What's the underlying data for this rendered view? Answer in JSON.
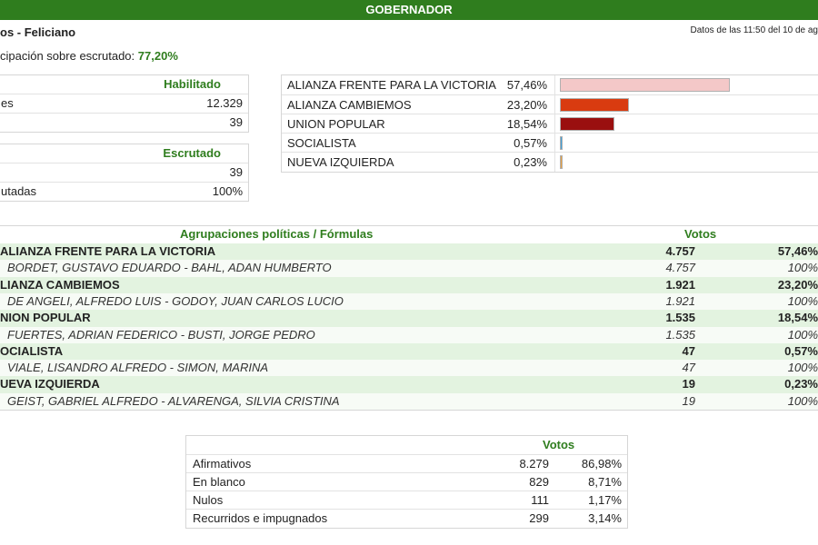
{
  "header": {
    "title": "GOBERNADOR"
  },
  "location": {
    "title": "os - Feliciano"
  },
  "date": {
    "text": "Datos de las 11:50 del 10 de ag"
  },
  "participation": {
    "label": "cipación sobre escrutado:",
    "value": "77,20%"
  },
  "habilitado": {
    "header": "Habilitado",
    "rows": [
      {
        "label": "es",
        "value": "12.329"
      },
      {
        "label": "",
        "value": "39"
      }
    ]
  },
  "escrutado": {
    "header": "Escrutado",
    "rows": [
      {
        "label": "",
        "value": "39"
      },
      {
        "label": "utadas",
        "value": "100%"
      }
    ]
  },
  "bars": [
    {
      "name": "ALIANZA FRENTE PARA LA VICTORIA",
      "pct": "57,46%",
      "value": 57.46,
      "color": "#f4c8c8"
    },
    {
      "name": "ALIANZA CAMBIEMOS",
      "pct": "23,20%",
      "value": 23.2,
      "color": "#d93b10"
    },
    {
      "name": "UNION POPULAR",
      "pct": "18,54%",
      "value": 18.54,
      "color": "#9a0f0f"
    },
    {
      "name": "SOCIALISTA",
      "pct": "0,57%",
      "value": 0.57,
      "color": "#3fa0d9"
    },
    {
      "name": "NUEVA IZQUIERDA",
      "pct": "0,23%",
      "value": 0.23,
      "color": "#e8a040"
    }
  ],
  "results": {
    "col_agrup": "Agrupaciones políticas / Fórmulas",
    "col_votos": "Votos",
    "rows": [
      {
        "type": "party",
        "name": "ALIANZA FRENTE PARA LA VICTORIA",
        "votes": "4.757",
        "pct": "57,46%"
      },
      {
        "type": "cand",
        "name": "BORDET, GUSTAVO EDUARDO - BAHL, ADAN HUMBERTO",
        "votes": "4.757",
        "pct": "100%"
      },
      {
        "type": "party",
        "name": "LIANZA CAMBIEMOS",
        "votes": "1.921",
        "pct": "23,20%"
      },
      {
        "type": "cand",
        "name": "DE ANGELI, ALFREDO LUIS - GODOY, JUAN CARLOS LUCIO",
        "votes": "1.921",
        "pct": "100%"
      },
      {
        "type": "party",
        "name": "NION POPULAR",
        "votes": "1.535",
        "pct": "18,54%"
      },
      {
        "type": "cand",
        "name": "FUERTES, ADRIAN FEDERICO - BUSTI, JORGE PEDRO",
        "votes": "1.535",
        "pct": "100%"
      },
      {
        "type": "party",
        "name": "OCIALISTA",
        "votes": "47",
        "pct": "0,57%"
      },
      {
        "type": "cand",
        "name": "VIALE, LISANDRO ALFREDO - SIMON, MARINA",
        "votes": "47",
        "pct": "100%"
      },
      {
        "type": "party",
        "name": "UEVA IZQUIERDA",
        "votes": "19",
        "pct": "0,23%"
      },
      {
        "type": "cand",
        "name": "GEIST, GABRIEL ALFREDO - ALVARENGA, SILVIA CRISTINA",
        "votes": "19",
        "pct": "100%"
      }
    ]
  },
  "totals": {
    "header": "Votos",
    "rows": [
      {
        "label": "Afirmativos",
        "votes": "8.279",
        "pct": "86,98%"
      },
      {
        "label": "En blanco",
        "votes": "829",
        "pct": "8,71%"
      },
      {
        "label": "Nulos",
        "votes": "111",
        "pct": "1,17%"
      },
      {
        "label": "Recurridos e impugnados",
        "votes": "299",
        "pct": "3,14%"
      }
    ]
  }
}
